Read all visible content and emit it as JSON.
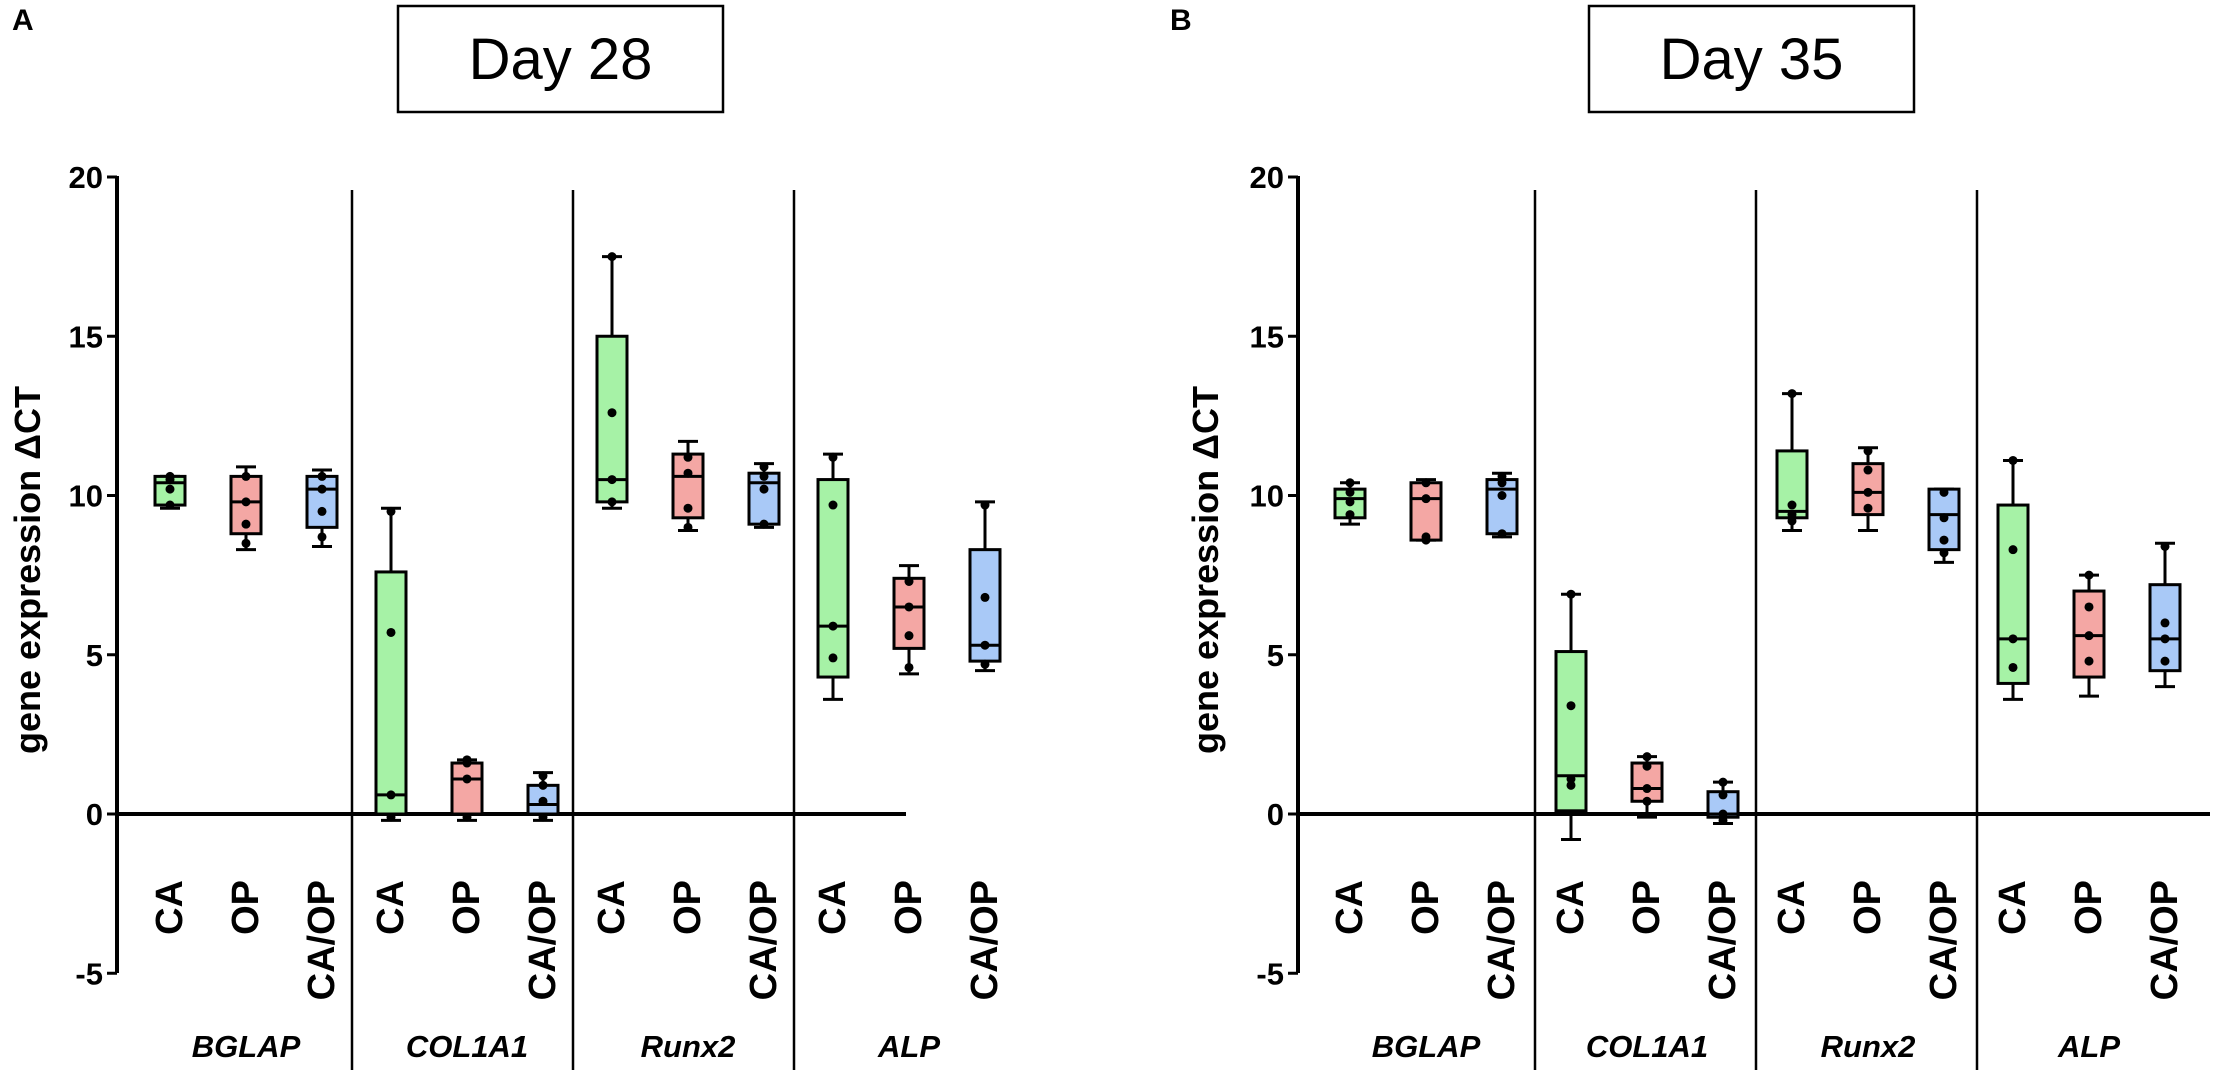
{
  "colors": {
    "CA": "#a6f2a6",
    "OP": "#f4a7a4",
    "CA/OP": "#a9c9f7",
    "stroke": "#000000"
  },
  "chart_data": [
    {
      "type": "box",
      "panel": "A",
      "title": "Day 28",
      "ylabel": "gene expression ΔCT",
      "ylim": [
        -5,
        20
      ],
      "yticks": [
        20,
        15,
        10,
        5,
        0,
        -5
      ],
      "grid": false,
      "genes": [
        {
          "name": "BGLAP",
          "groups": [
            {
              "label": "CA",
              "min": 9.6,
              "q1": 9.7,
              "median": 10.4,
              "q3": 10.6,
              "max": 10.6,
              "points": [
                10.5,
                10.2,
                9.7,
                10.6
              ]
            },
            {
              "label": "OP",
              "min": 8.3,
              "q1": 8.8,
              "median": 9.8,
              "q3": 10.6,
              "max": 10.9,
              "points": [
                10.6,
                9.8,
                9.1,
                8.5
              ]
            },
            {
              "label": "CA/OP",
              "min": 8.4,
              "q1": 9.0,
              "median": 10.2,
              "q3": 10.6,
              "max": 10.8,
              "points": [
                10.6,
                10.2,
                9.5,
                8.7
              ]
            }
          ]
        },
        {
          "name": "COL1A1",
          "groups": [
            {
              "label": "CA",
              "min": -0.2,
              "q1": 0.0,
              "median": 0.6,
              "q3": 7.6,
              "max": 9.6,
              "points": [
                5.7,
                0.6,
                -0.1,
                9.5
              ]
            },
            {
              "label": "OP",
              "min": -0.2,
              "q1": 0.0,
              "median": 1.1,
              "q3": 1.6,
              "max": 1.7,
              "points": [
                1.6,
                1.1,
                -0.1,
                1.7
              ]
            },
            {
              "label": "CA/OP",
              "min": -0.2,
              "q1": 0.0,
              "median": 0.3,
              "q3": 0.9,
              "max": 1.3,
              "points": [
                0.9,
                0.4,
                -0.1,
                1.2
              ]
            }
          ]
        },
        {
          "name": "Runx2",
          "groups": [
            {
              "label": "CA",
              "min": 9.6,
              "q1": 9.8,
              "median": 10.5,
              "q3": 15.0,
              "max": 17.5,
              "points": [
                12.6,
                10.5,
                9.8,
                17.5
              ]
            },
            {
              "label": "OP",
              "min": 8.9,
              "q1": 9.3,
              "median": 10.6,
              "q3": 11.3,
              "max": 11.7,
              "points": [
                11.2,
                10.7,
                9.6,
                9.0
              ]
            },
            {
              "label": "CA/OP",
              "min": 9.0,
              "q1": 9.1,
              "median": 10.4,
              "q3": 10.7,
              "max": 11.0,
              "points": [
                10.6,
                10.2,
                9.1,
                10.9
              ]
            }
          ]
        },
        {
          "name": "ALP",
          "groups": [
            {
              "label": "CA",
              "min": 3.6,
              "q1": 4.3,
              "median": 5.9,
              "q3": 10.5,
              "max": 11.3,
              "points": [
                9.7,
                5.9,
                4.9,
                11.2
              ]
            },
            {
              "label": "OP",
              "min": 4.4,
              "q1": 5.2,
              "median": 6.5,
              "q3": 7.4,
              "max": 7.8,
              "points": [
                7.3,
                6.5,
                5.6,
                4.6
              ]
            },
            {
              "label": "CA/OP",
              "min": 4.5,
              "q1": 4.8,
              "median": 5.3,
              "q3": 8.3,
              "max": 9.8,
              "points": [
                6.8,
                5.3,
                4.7,
                9.7
              ]
            }
          ]
        }
      ]
    },
    {
      "type": "box",
      "panel": "B",
      "title": "Day 35",
      "ylabel": "gene expression ΔCT",
      "ylim": [
        -5,
        20
      ],
      "yticks": [
        20,
        15,
        10,
        5,
        0,
        -5
      ],
      "grid": false,
      "genes": [
        {
          "name": "BGLAP",
          "groups": [
            {
              "label": "CA",
              "min": 9.1,
              "q1": 9.3,
              "median": 9.9,
              "q3": 10.2,
              "max": 10.4,
              "points": [
                10.1,
                9.8,
                9.4,
                10.4
              ]
            },
            {
              "label": "OP",
              "min": 8.6,
              "q1": 8.6,
              "median": 9.9,
              "q3": 10.4,
              "max": 10.5,
              "points": [
                10.4,
                9.9,
                8.7,
                8.6
              ]
            },
            {
              "label": "CA/OP",
              "min": 8.7,
              "q1": 8.8,
              "median": 10.2,
              "q3": 10.5,
              "max": 10.7,
              "points": [
                10.4,
                10.0,
                8.8,
                10.6
              ]
            }
          ]
        },
        {
          "name": "COL1A1",
          "groups": [
            {
              "label": "CA",
              "min": -0.8,
              "q1": 0.1,
              "median": 1.2,
              "q3": 5.1,
              "max": 6.9,
              "points": [
                3.4,
                1.1,
                0.9,
                6.9
              ]
            },
            {
              "label": "OP",
              "min": -0.1,
              "q1": 0.4,
              "median": 0.8,
              "q3": 1.6,
              "max": 1.8,
              "points": [
                1.5,
                0.8,
                0.4,
                1.8
              ]
            },
            {
              "label": "CA/OP",
              "min": -0.3,
              "q1": -0.1,
              "median": 0.0,
              "q3": 0.7,
              "max": 1.0,
              "points": [
                0.6,
                0.0,
                -0.2,
                1.0
              ]
            }
          ]
        },
        {
          "name": "Runx2",
          "groups": [
            {
              "label": "CA",
              "min": 8.9,
              "q1": 9.3,
              "median": 9.5,
              "q3": 11.4,
              "max": 13.2,
              "points": [
                9.7,
                9.4,
                9.2,
                13.2
              ]
            },
            {
              "label": "OP",
              "min": 8.9,
              "q1": 9.4,
              "median": 10.1,
              "q3": 11.0,
              "max": 11.5,
              "points": [
                10.8,
                10.1,
                9.6,
                11.4
              ]
            },
            {
              "label": "CA/OP",
              "min": 7.9,
              "q1": 8.3,
              "median": 9.4,
              "q3": 10.2,
              "max": 10.2,
              "points": [
                10.1,
                9.3,
                8.6,
                8.2
              ]
            }
          ]
        },
        {
          "name": "ALP",
          "groups": [
            {
              "label": "CA",
              "min": 3.6,
              "q1": 4.1,
              "median": 5.5,
              "q3": 9.7,
              "max": 11.1,
              "points": [
                8.3,
                5.5,
                4.6,
                11.1
              ]
            },
            {
              "label": "OP",
              "min": 3.7,
              "q1": 4.3,
              "median": 5.6,
              "q3": 7.0,
              "max": 7.5,
              "points": [
                6.5,
                5.6,
                4.8,
                7.5
              ]
            },
            {
              "label": "CA/OP",
              "min": 4.0,
              "q1": 4.5,
              "median": 5.5,
              "q3": 7.2,
              "max": 8.5,
              "points": [
                6.0,
                5.5,
                4.8,
                8.4
              ]
            }
          ]
        }
      ]
    }
  ]
}
